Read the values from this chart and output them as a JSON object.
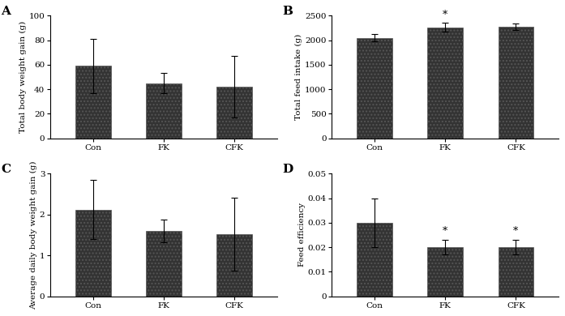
{
  "panels": [
    {
      "label": "A",
      "ylabel": "Total body weight gain (g)",
      "categories": [
        "Con",
        "FK",
        "CFK"
      ],
      "values": [
        59,
        45,
        42
      ],
      "errors": [
        22,
        8,
        25
      ],
      "ylim": [
        0,
        100
      ],
      "yticks": [
        0,
        20,
        40,
        60,
        80,
        100
      ],
      "ytick_labels": [
        "0",
        "20",
        "40",
        "60",
        "80",
        "100"
      ],
      "significance": [
        "",
        "",
        ""
      ]
    },
    {
      "label": "B",
      "ylabel": "Total feed intake (g)",
      "categories": [
        "Con",
        "FK",
        "CFK"
      ],
      "values": [
        2050,
        2260,
        2270
      ],
      "errors": [
        70,
        90,
        65
      ],
      "ylim": [
        0,
        2500
      ],
      "yticks": [
        0,
        500,
        1000,
        1500,
        2000,
        2500
      ],
      "ytick_labels": [
        "0",
        "500",
        "1000",
        "1500",
        "2000",
        "2500"
      ],
      "significance": [
        "",
        "*",
        ""
      ]
    },
    {
      "label": "C",
      "ylabel": "Average daily body weight gain (g)",
      "categories": [
        "Con",
        "FK",
        "CFK"
      ],
      "values": [
        2.12,
        1.6,
        1.52
      ],
      "errors": [
        0.72,
        0.28,
        0.9
      ],
      "ylim": [
        0,
        3
      ],
      "yticks": [
        0,
        1,
        2,
        3
      ],
      "ytick_labels": [
        "0",
        "1",
        "2",
        "3"
      ],
      "significance": [
        "",
        "",
        ""
      ]
    },
    {
      "label": "D",
      "ylabel": "Feed efficiency",
      "categories": [
        "Con",
        "FK",
        "CFK"
      ],
      "values": [
        0.03,
        0.02,
        0.02
      ],
      "errors": [
        0.01,
        0.003,
        0.003
      ],
      "ylim": [
        0,
        0.05
      ],
      "yticks": [
        0,
        0.01,
        0.02,
        0.03,
        0.04,
        0.05
      ],
      "ytick_labels": [
        "0",
        "0.01",
        "0.02",
        "0.03",
        "0.04",
        "0.05"
      ],
      "significance": [
        "",
        "*",
        "*"
      ]
    }
  ],
  "bar_color": "#333333",
  "bar_hatch": "....",
  "bar_width": 0.5,
  "background_color": "#ffffff",
  "fontsize_label": 7.5,
  "fontsize_tick": 7.5,
  "fontsize_panel": 11,
  "fontsize_sig": 9
}
